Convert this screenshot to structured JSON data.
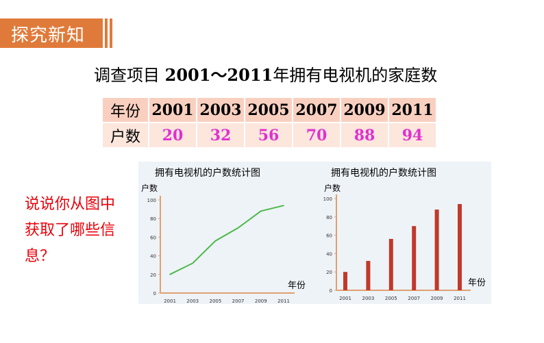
{
  "header": {
    "title": "探究新知"
  },
  "survey": {
    "title_prefix": "调查项目 ",
    "title_years": "2001～2011",
    "title_suffix": "年拥有电视机的家庭数"
  },
  "table": {
    "year_header": "年份",
    "count_header": "户数",
    "years": [
      "2001",
      "2003",
      "2005",
      "2007",
      "2009",
      "2011"
    ],
    "counts": [
      "20",
      "32",
      "56",
      "70",
      "88",
      "94"
    ]
  },
  "question": {
    "text": "说说你从图中获取了哪些信息？"
  },
  "chart_data": [
    {
      "type": "line",
      "title": "拥有电视机的户数统计图",
      "ylabel": "户数",
      "xlabel": "年份",
      "categories": [
        "2001",
        "2003",
        "2005",
        "2007",
        "2009",
        "2011"
      ],
      "values": [
        20,
        32,
        56,
        70,
        88,
        94
      ],
      "yticks": [
        "0",
        "20",
        "40",
        "60",
        "80",
        "100"
      ],
      "ylim": [
        0,
        100
      ],
      "color": "#4cb848"
    },
    {
      "type": "bar",
      "title": "拥有电视机的户数统计图",
      "ylabel": "户数",
      "xlabel": "年份",
      "categories": [
        "2001",
        "2003",
        "2005",
        "2007",
        "2009",
        "2011"
      ],
      "values": [
        20,
        32,
        56,
        70,
        88,
        94
      ],
      "yticks": [
        "0",
        "20",
        "40",
        "60",
        "80",
        "100"
      ],
      "ylim": [
        0,
        100
      ],
      "color": "#c0392b"
    }
  ],
  "colors": {
    "accent": "#e07a3a",
    "question": "#e8000a",
    "value": "#e030d0"
  }
}
